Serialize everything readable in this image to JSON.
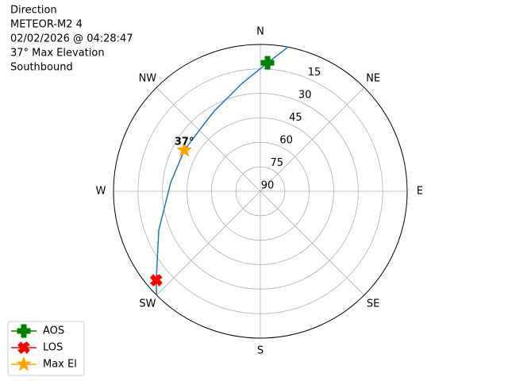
{
  "chart_data": {
    "type": "polar",
    "text_lines": [
      "Direction",
      "METEOR-M2 4",
      "02/02/2026 @ 04:28:47",
      "37° Max Elevation",
      "Southbound"
    ],
    "xticks": [
      {
        "value": 0,
        "label": "N"
      },
      {
        "value": 45,
        "label": "NE"
      },
      {
        "value": 90,
        "label": "E"
      },
      {
        "value": 135,
        "label": "SE"
      },
      {
        "value": 180,
        "label": "S"
      },
      {
        "value": 225,
        "label": "SW"
      },
      {
        "value": 270,
        "label": "W"
      },
      {
        "value": 315,
        "label": "NW"
      }
    ],
    "ylim": [
      90,
      0
    ],
    "yticks": [
      15,
      30,
      45,
      60,
      75,
      90
    ],
    "grid": true,
    "legend": "lower left",
    "track": {
      "color": "#1f77b4",
      "x": [
        10.6,
        3.2,
        350.4,
        330.1,
        324,
        298.4,
        275.6,
        249,
        229.5,
        225
      ],
      "values": [
        0.5,
        11.1,
        22.9,
        33.3,
        35.3,
        37,
        34.8,
        23.3,
        6.1,
        0
      ]
    },
    "series": [
      {
        "name": "AOS",
        "color": "#008000",
        "marker": "plus",
        "x": [
          3.2
        ],
        "values": [
          11.1
        ]
      },
      {
        "name": "LOS",
        "color": "#ff0000",
        "marker": "x",
        "x": [
          229.5
        ],
        "values": [
          6.1
        ]
      },
      {
        "name": "Max El",
        "color": "#ffa500",
        "marker": "star",
        "x": [
          298.4
        ],
        "values": [
          37
        ],
        "value_labels": [
          "37°"
        ]
      }
    ]
  }
}
